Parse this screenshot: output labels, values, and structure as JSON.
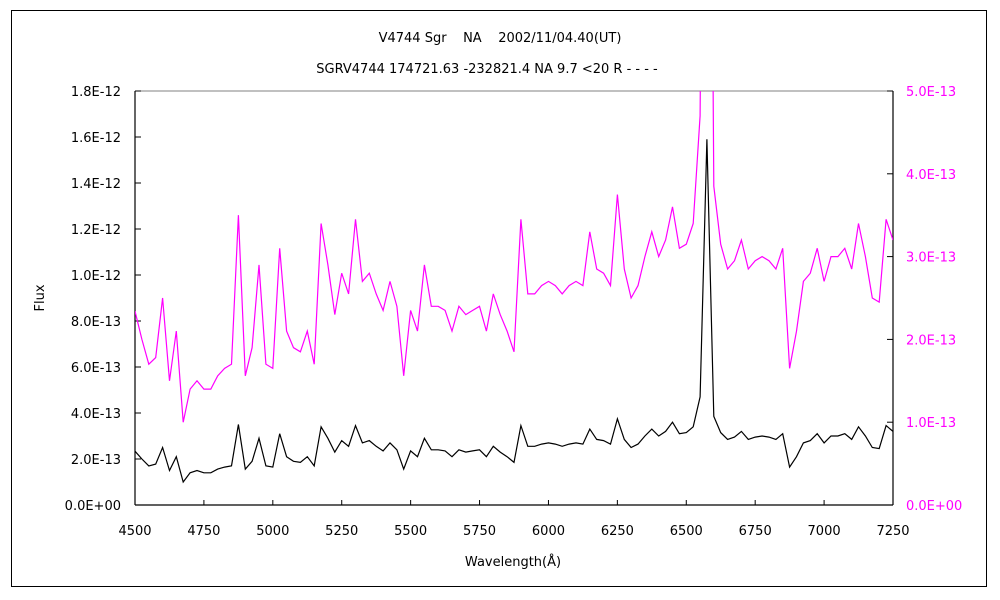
{
  "chart_data": {
    "type": "line",
    "title": "V4744 Sgr    NA    2002/11/04.40(UT)",
    "subtitle": "SGRV4744 174721.63 -232821.4 NA 9.7 <20 R - - - -",
    "xlabel": "Wavelength(Å)",
    "ylabel": "Flux",
    "xlim": [
      4500,
      7250
    ],
    "xticks": [
      4500,
      4750,
      5000,
      5250,
      5500,
      5750,
      6000,
      6250,
      6500,
      6750,
      7000,
      7250
    ],
    "ylim_left": [
      0,
      1.8e-12
    ],
    "yticks_left": [
      "0.0E+00",
      "2.0E-13",
      "4.0E-13",
      "6.0E-13",
      "8.0E-13",
      "1.0E-12",
      "1.2E-12",
      "1.4E-12",
      "1.6E-12",
      "1.8E-12"
    ],
    "ylim_right": [
      0,
      5e-13
    ],
    "yticks_right": [
      "0.0E+00",
      "1.0E-13",
      "2.0E-13",
      "3.0E-13",
      "4.0E-13",
      "5.0E-13"
    ],
    "grid": false,
    "legend": "none",
    "x": [
      4500,
      4525,
      4550,
      4575,
      4600,
      4625,
      4650,
      4675,
      4700,
      4725,
      4750,
      4775,
      4800,
      4825,
      4850,
      4875,
      4900,
      4925,
      4950,
      4975,
      5000,
      5025,
      5050,
      5075,
      5100,
      5125,
      5150,
      5175,
      5200,
      5225,
      5250,
      5275,
      5300,
      5325,
      5350,
      5375,
      5400,
      5425,
      5450,
      5475,
      5500,
      5525,
      5550,
      5575,
      5600,
      5625,
      5650,
      5675,
      5700,
      5725,
      5750,
      5775,
      5800,
      5825,
      5850,
      5875,
      5900,
      5925,
      5950,
      5975,
      6000,
      6025,
      6050,
      6075,
      6100,
      6125,
      6150,
      6175,
      6200,
      6225,
      6250,
      6275,
      6300,
      6325,
      6350,
      6375,
      6400,
      6425,
      6450,
      6475,
      6500,
      6525,
      6550,
      6575,
      6600,
      6625,
      6650,
      6675,
      6700,
      6725,
      6750,
      6775,
      6800,
      6825,
      6850,
      6875,
      6900,
      6925,
      6950,
      6975,
      7000,
      7025,
      7050,
      7075,
      7100,
      7125,
      7150,
      7175,
      7200,
      7225,
      7250
    ],
    "y": [
      2.34e-13,
      2e-13,
      1.7e-13,
      1.78e-13,
      2.5e-13,
      1.5e-13,
      2.1e-13,
      1e-13,
      1.4e-13,
      1.5e-13,
      1.4e-13,
      1.4e-13,
      1.56e-13,
      1.65e-13,
      1.7e-13,
      3.5e-13,
      1.56e-13,
      1.9e-13,
      2.9e-13,
      1.7e-13,
      1.65e-13,
      3.1e-13,
      2.1e-13,
      1.9e-13,
      1.85e-13,
      2.1e-13,
      1.7e-13,
      3.4e-13,
      2.9e-13,
      2.3e-13,
      2.8e-13,
      2.55e-13,
      3.45e-13,
      2.7e-13,
      2.8e-13,
      2.55e-13,
      2.35e-13,
      2.7e-13,
      2.4e-13,
      1.56e-13,
      2.35e-13,
      2.1e-13,
      2.9e-13,
      2.4e-13,
      2.4e-13,
      2.35e-13,
      2.1e-13,
      2.4e-13,
      2.3e-13,
      2.35e-13,
      2.4e-13,
      2.1e-13,
      2.55e-13,
      2.3e-13,
      2.1e-13,
      1.85e-13,
      3.45e-13,
      2.55e-13,
      2.55e-13,
      2.65e-13,
      2.7e-13,
      2.65e-13,
      2.55e-13,
      2.65e-13,
      2.7e-13,
      2.65e-13,
      3.3e-13,
      2.85e-13,
      2.8e-13,
      2.65e-13,
      3.75e-13,
      2.85e-13,
      2.5e-13,
      2.65e-13,
      3e-13,
      3.3e-13,
      3e-13,
      3.2e-13,
      3.6e-13,
      3.1e-13,
      3.15e-13,
      3.4e-13,
      4.7e-13,
      1.59e-12,
      3.85e-13,
      3.15e-13,
      2.85e-13,
      2.95e-13,
      3.2e-13,
      2.85e-13,
      2.95e-13,
      3e-13,
      2.95e-13,
      2.85e-13,
      3.1e-13,
      1.65e-13,
      2.1e-13,
      2.7e-13,
      2.8e-13,
      3.1e-13,
      2.7e-13,
      3e-13,
      3e-13,
      3.1e-13,
      2.85e-13,
      3.4e-13,
      3e-13,
      2.5e-13,
      2.45e-13,
      3.45e-13,
      3.2e-13
    ],
    "series": [
      {
        "axis": "left",
        "color": "#000000"
      },
      {
        "axis": "right",
        "color": "#FF00FF"
      }
    ],
    "colors": {
      "left_axis_labels": "#000000",
      "right_axis_labels": "#FF00FF"
    }
  }
}
